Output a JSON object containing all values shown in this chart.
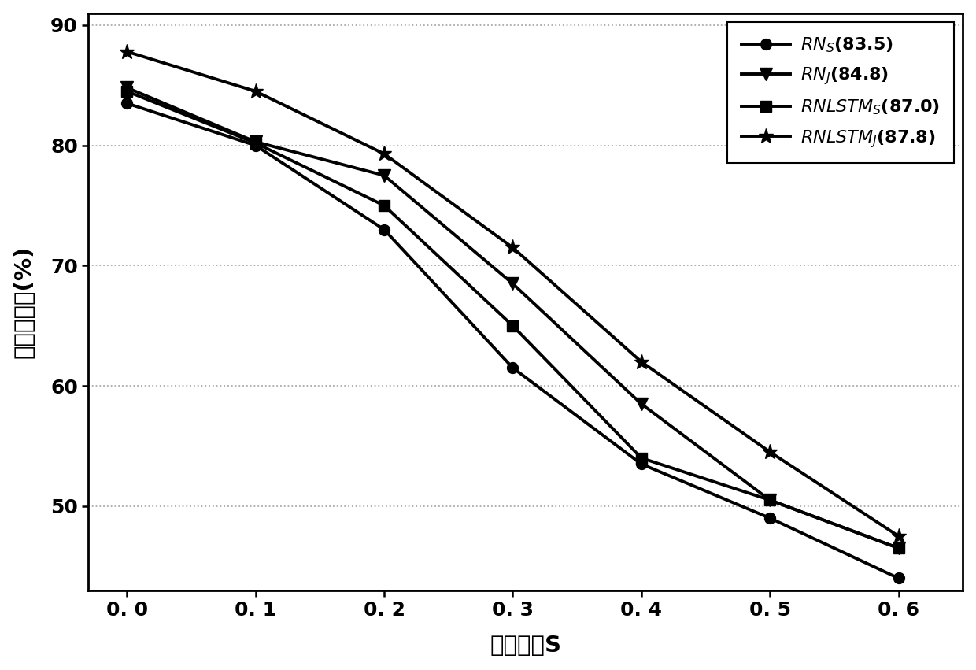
{
  "x": [
    0.0,
    0.1,
    0.2,
    0.3,
    0.4,
    0.5,
    0.6
  ],
  "RNS": [
    83.5,
    80.0,
    73.0,
    61.5,
    53.5,
    49.0,
    44.0
  ],
  "RNJ": [
    84.8,
    80.3,
    77.5,
    68.5,
    58.5,
    50.5,
    46.5
  ],
  "RNLSTMS": [
    84.5,
    80.2,
    75.0,
    65.0,
    54.0,
    50.5,
    46.5
  ],
  "RNLSTMJ": [
    87.8,
    84.5,
    79.3,
    71.5,
    62.0,
    54.5,
    47.5
  ],
  "xlabel": "遥挡比例S",
  "ylabel": "第一匹配率(%)",
  "ylim": [
    43,
    91
  ],
  "yticks": [
    50,
    60,
    70,
    80,
    90
  ],
  "xticks": [
    0.0,
    0.1,
    0.2,
    0.3,
    0.4,
    0.5,
    0.6
  ],
  "xtick_labels": [
    "0. 0",
    "0. 1",
    "0. 2",
    "0. 3",
    "0. 4",
    "0. 5",
    "0. 6"
  ],
  "background_color": "#ffffff",
  "line_color": "#000000",
  "grid_color": "#aaaaaa"
}
